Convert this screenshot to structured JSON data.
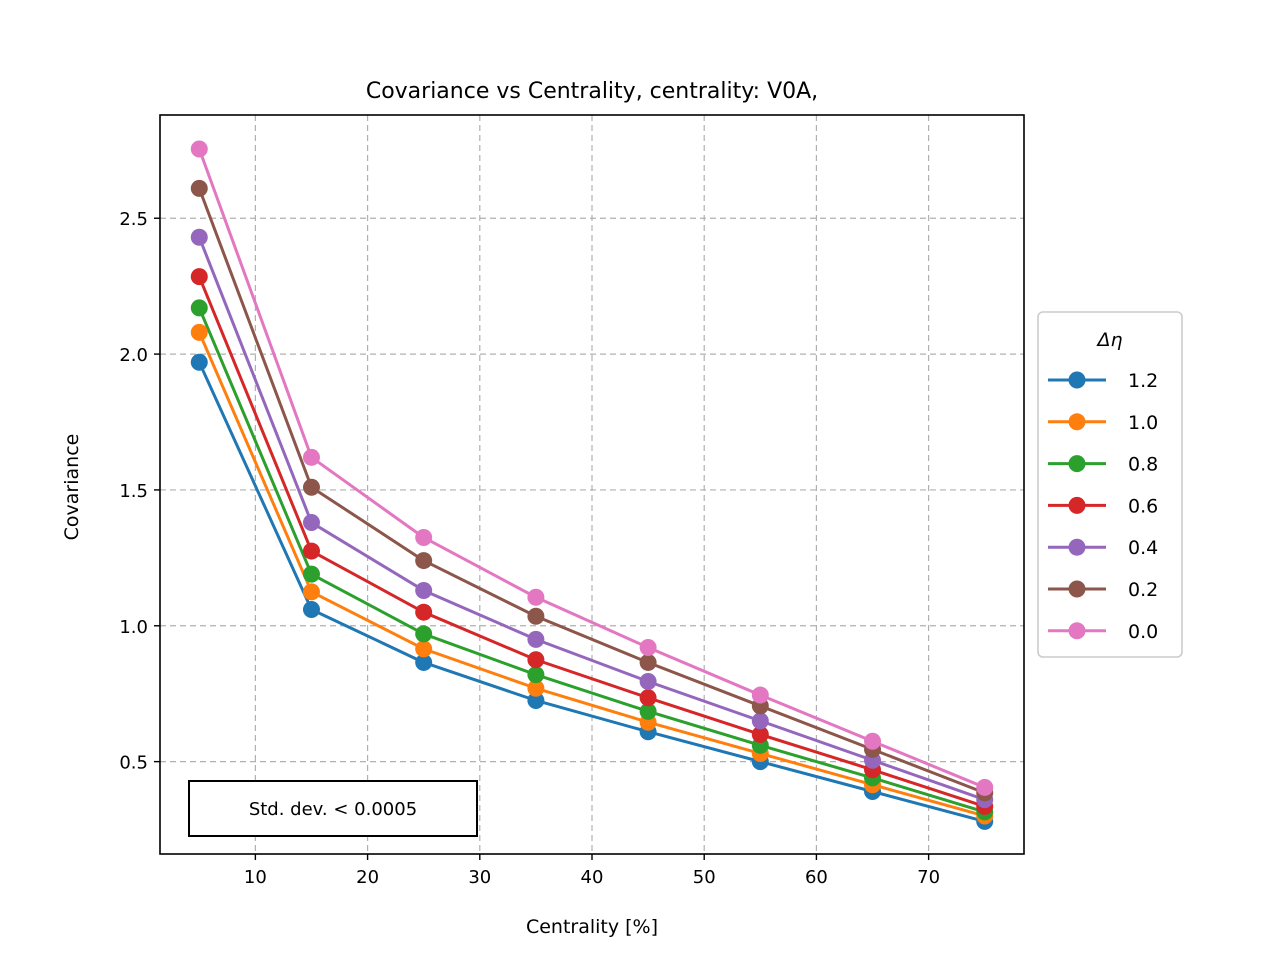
{
  "chart_data": {
    "type": "line",
    "title": "Covariance vs Centrality, centrality: V0A,",
    "xlabel": "Centrality [%]",
    "ylabel": "Covariance",
    "xlim": [
      1.5,
      78.5
    ],
    "ylim": [
      0.16,
      2.88
    ],
    "xticks": [
      10,
      20,
      30,
      40,
      50,
      60,
      70
    ],
    "xtick_labels": [
      "10",
      "20",
      "30",
      "40",
      "50",
      "60",
      "70"
    ],
    "yticks": [
      0.5,
      1.0,
      1.5,
      2.0,
      2.5
    ],
    "ytick_labels": [
      "0.5",
      "1.0",
      "1.5",
      "2.0",
      "2.5"
    ],
    "grid": true,
    "legend": {
      "title": "Δη",
      "placement": "outside-right"
    },
    "annotation": "Std. dev. < 0.0005",
    "x": [
      5,
      15,
      25,
      35,
      45,
      55,
      65,
      75
    ],
    "series": [
      {
        "name": "1.2",
        "color": "#1f77b4",
        "values": [
          1.97,
          1.06,
          0.865,
          0.725,
          0.61,
          0.5,
          0.39,
          0.28
        ]
      },
      {
        "name": "1.0",
        "color": "#ff7f0e",
        "values": [
          2.08,
          1.125,
          0.915,
          0.77,
          0.645,
          0.53,
          0.415,
          0.3
        ]
      },
      {
        "name": "0.8",
        "color": "#2ca02c",
        "values": [
          2.17,
          1.19,
          0.97,
          0.82,
          0.685,
          0.56,
          0.44,
          0.315
        ]
      },
      {
        "name": "0.6",
        "color": "#d62728",
        "values": [
          2.285,
          1.275,
          1.05,
          0.875,
          0.735,
          0.6,
          0.47,
          0.335
        ]
      },
      {
        "name": "0.4",
        "color": "#9467bd",
        "values": [
          2.43,
          1.38,
          1.13,
          0.95,
          0.795,
          0.65,
          0.505,
          0.36
        ]
      },
      {
        "name": "0.2",
        "color": "#8c564b",
        "values": [
          2.61,
          1.51,
          1.24,
          1.035,
          0.865,
          0.705,
          0.545,
          0.385
        ]
      },
      {
        "name": "0.0",
        "color": "#e377c2",
        "values": [
          2.755,
          1.62,
          1.325,
          1.105,
          0.92,
          0.745,
          0.575,
          0.405
        ]
      }
    ]
  }
}
